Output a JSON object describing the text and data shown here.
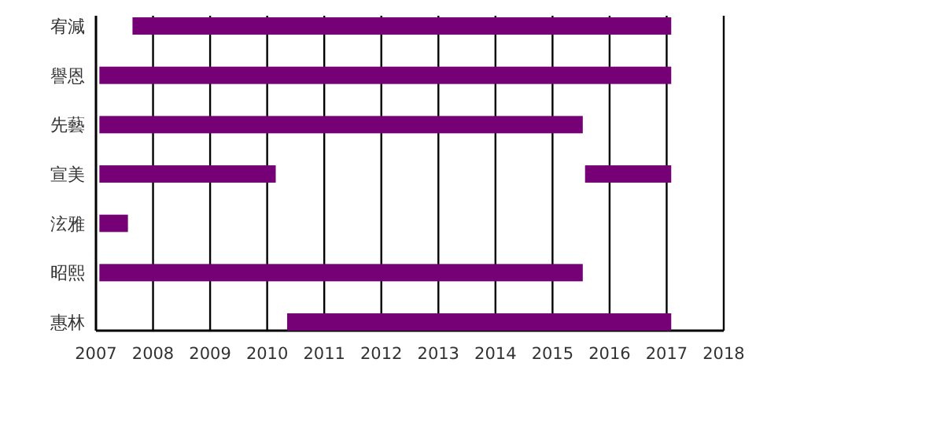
{
  "chart_data": {
    "type": "bar",
    "orientation": "horizontal",
    "categories": [
      "宥減",
      "譽恩",
      "先藝",
      "宣美",
      "泫雅",
      "昭熙",
      "惠林"
    ],
    "series": [
      {
        "color": "#760177",
        "base": [
          2007.64,
          2007.06,
          2007.06,
          2007.06,
          2007.06,
          2007.06,
          2010.35
        ],
        "values": [
          9.44,
          10.02,
          8.47,
          3.09,
          0.5,
          8.47,
          6.73
        ]
      },
      {
        "color": "#760177",
        "base": [
          null,
          null,
          null,
          2015.57,
          null,
          null,
          null
        ],
        "values": [
          null,
          null,
          null,
          1.51,
          null,
          null,
          null
        ]
      }
    ],
    "xlim": [
      2007,
      2018
    ],
    "xticks": [
      2007,
      2008,
      2009,
      2010,
      2011,
      2012,
      2013,
      2014,
      2015,
      2016,
      2017,
      2018
    ],
    "grid": "x"
  }
}
